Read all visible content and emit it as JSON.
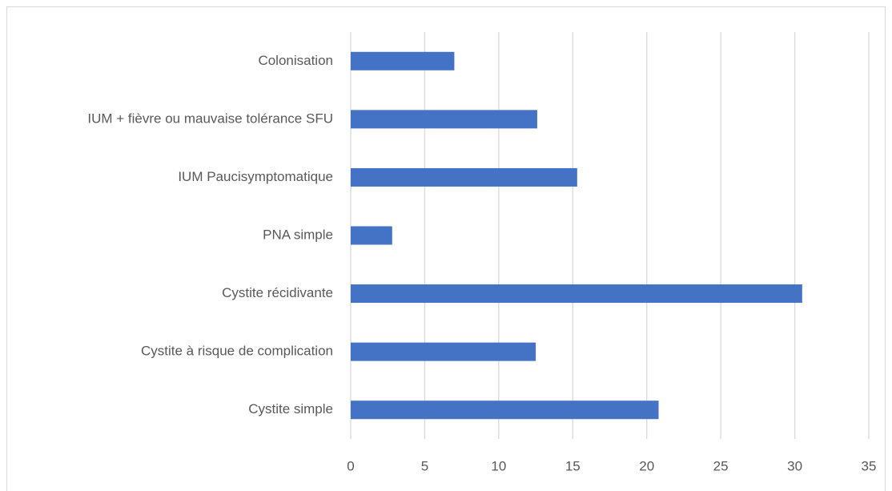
{
  "chart_data": {
    "type": "bar",
    "orientation": "horizontal",
    "categories": [
      "Colonisation",
      "IUM + fièvre ou mauvaise tolérance SFU",
      "IUM Paucisymptomatique",
      "PNA simple",
      "Cystite récidivante",
      "Cystite à risque de complication",
      "Cystite simple"
    ],
    "values": [
      7,
      12.6,
      15.3,
      2.8,
      30.5,
      12.5,
      20.8
    ],
    "color": "#4472c4",
    "xlim": [
      0,
      35
    ],
    "xticks": [
      0,
      5,
      10,
      15,
      20,
      25,
      30,
      35
    ],
    "grid": true
  }
}
